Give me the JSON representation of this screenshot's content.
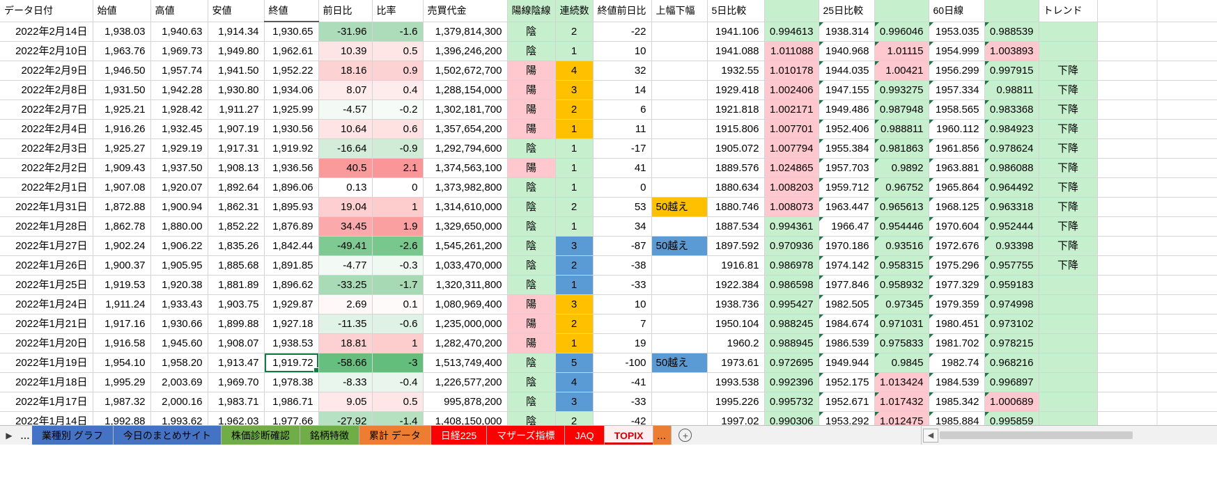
{
  "colors": {
    "green_fill": "#c6efce",
    "pink_fill": "#ffc7ce",
    "orange_fill": "#ffc000",
    "blue_fill": "#5b9bd5",
    "scale_green": "#63be7b",
    "scale_red": "#f8696b",
    "selection": "#107c41"
  },
  "color_scale": {
    "change_range": 60,
    "percent_range": 3
  },
  "selection": {
    "row_index": 17,
    "column": "close"
  },
  "table": {
    "headers": {
      "date": "データ日付",
      "open": "始値",
      "high": "高値",
      "low": "安値",
      "close": "終値",
      "change": "前日比",
      "percent": "比率",
      "volume": "売買代金",
      "candle": "陽線陰線",
      "streak": "連続数",
      "run_change": "終値前日比",
      "band": "上幅下幅",
      "ma5": "5日比較",
      "ma25": "25日比較",
      "ma60": "60日線",
      "trend": "トレンド"
    },
    "rows": [
      {
        "date": "2022年2月14日",
        "open": "1,938.03",
        "high": "1,940.63",
        "low": "1,914.34",
        "close": "1,930.65",
        "chg": "-31.96",
        "pct": "-1.6",
        "vol": "1,379,814,300",
        "candle": "陰",
        "run": "2",
        "run_c": "",
        "cum": "-22",
        "band": "",
        "band_c": "",
        "d5": "1941.106",
        "d5r": "0.994613",
        "d25": "1938.314",
        "d25r": "0.996046",
        "d60": "1953.035",
        "d60r": "0.988539",
        "trend": ""
      },
      {
        "date": "2022年2月10日",
        "open": "1,963.76",
        "high": "1,969.73",
        "low": "1,949.80",
        "close": "1,962.61",
        "chg": "10.39",
        "pct": "0.5",
        "vol": "1,396,246,200",
        "candle": "陰",
        "run": "1",
        "run_c": "",
        "cum": "10",
        "band": "",
        "band_c": "",
        "d5": "1941.088",
        "d5r": "1.011088",
        "d25": "1940.968",
        "d25r": "1.01115",
        "d60": "1954.999",
        "d60r": "1.003893",
        "trend": ""
      },
      {
        "date": "2022年2月9日",
        "open": "1,946.50",
        "high": "1,957.74",
        "low": "1,941.50",
        "close": "1,952.22",
        "chg": "18.16",
        "pct": "0.9",
        "vol": "1,502,672,700",
        "candle": "陽",
        "run": "4",
        "run_c": "orange",
        "cum": "32",
        "band": "",
        "band_c": "",
        "d5": "1932.55",
        "d5r": "1.010178",
        "d25": "1944.035",
        "d25r": "1.00421",
        "d60": "1956.299",
        "d60r": "0.997915",
        "trend": "下降"
      },
      {
        "date": "2022年2月8日",
        "open": "1,931.50",
        "high": "1,942.28",
        "low": "1,930.80",
        "close": "1,934.06",
        "chg": "8.07",
        "pct": "0.4",
        "vol": "1,288,154,000",
        "candle": "陽",
        "run": "3",
        "run_c": "orange",
        "cum": "14",
        "band": "",
        "band_c": "",
        "d5": "1929.418",
        "d5r": "1.002406",
        "d25": "1947.155",
        "d25r": "0.993275",
        "d60": "1957.334",
        "d60r": "0.98811",
        "trend": "下降"
      },
      {
        "date": "2022年2月7日",
        "open": "1,925.21",
        "high": "1,928.42",
        "low": "1,911.27",
        "close": "1,925.99",
        "chg": "-4.57",
        "pct": "-0.2",
        "vol": "1,302,181,700",
        "candle": "陽",
        "run": "2",
        "run_c": "orange",
        "cum": "6",
        "band": "",
        "band_c": "",
        "d5": "1921.818",
        "d5r": "1.002171",
        "d25": "1949.486",
        "d25r": "0.987948",
        "d60": "1958.565",
        "d60r": "0.983368",
        "trend": "下降"
      },
      {
        "date": "2022年2月4日",
        "open": "1,916.26",
        "high": "1,932.45",
        "low": "1,907.19",
        "close": "1,930.56",
        "chg": "10.64",
        "pct": "0.6",
        "vol": "1,357,654,200",
        "candle": "陽",
        "run": "1",
        "run_c": "orange",
        "cum": "11",
        "band": "",
        "band_c": "",
        "d5": "1915.806",
        "d5r": "1.007701",
        "d25": "1952.406",
        "d25r": "0.988811",
        "d60": "1960.112",
        "d60r": "0.984923",
        "trend": "下降"
      },
      {
        "date": "2022年2月3日",
        "open": "1,925.27",
        "high": "1,929.19",
        "low": "1,917.31",
        "close": "1,919.92",
        "chg": "-16.64",
        "pct": "-0.9",
        "vol": "1,292,794,600",
        "candle": "陰",
        "run": "1",
        "run_c": "",
        "cum": "-17",
        "band": "",
        "band_c": "",
        "d5": "1905.072",
        "d5r": "1.007794",
        "d25": "1955.384",
        "d25r": "0.981863",
        "d60": "1961.856",
        "d60r": "0.978624",
        "trend": "下降"
      },
      {
        "date": "2022年2月2日",
        "open": "1,909.43",
        "high": "1,937.50",
        "low": "1,908.13",
        "close": "1,936.56",
        "chg": "40.5",
        "pct": "2.1",
        "vol": "1,374,563,100",
        "candle": "陽",
        "run": "1",
        "run_c": "",
        "cum": "41",
        "band": "",
        "band_c": "",
        "d5": "1889.576",
        "d5r": "1.024865",
        "d25": "1957.703",
        "d25r": "0.9892",
        "d60": "1963.881",
        "d60r": "0.986088",
        "trend": "下降"
      },
      {
        "date": "2022年2月1日",
        "open": "1,907.08",
        "high": "1,920.07",
        "low": "1,892.64",
        "close": "1,896.06",
        "chg": "0.13",
        "pct": "0",
        "vol": "1,373,982,800",
        "candle": "陰",
        "run": "1",
        "run_c": "",
        "cum": "0",
        "band": "",
        "band_c": "",
        "d5": "1880.634",
        "d5r": "1.008203",
        "d25": "1959.712",
        "d25r": "0.96752",
        "d60": "1965.864",
        "d60r": "0.964492",
        "trend": "下降"
      },
      {
        "date": "2022年1月31日",
        "open": "1,872.88",
        "high": "1,900.94",
        "low": "1,862.31",
        "close": "1,895.93",
        "chg": "19.04",
        "pct": "1",
        "vol": "1,314,610,000",
        "candle": "陰",
        "run": "2",
        "run_c": "",
        "cum": "53",
        "band": "50越え",
        "band_c": "orange",
        "d5": "1880.746",
        "d5r": "1.008073",
        "d25": "1963.447",
        "d25r": "0.965613",
        "d60": "1968.125",
        "d60r": "0.963318",
        "trend": "下降"
      },
      {
        "date": "2022年1月28日",
        "open": "1,862.78",
        "high": "1,880.00",
        "low": "1,852.22",
        "close": "1,876.89",
        "chg": "34.45",
        "pct": "1.9",
        "vol": "1,329,650,000",
        "candle": "陰",
        "run": "1",
        "run_c": "",
        "cum": "34",
        "band": "",
        "band_c": "",
        "d5": "1887.534",
        "d5r": "0.994361",
        "d25": "1966.47",
        "d25r": "0.954446",
        "d60": "1970.604",
        "d60r": "0.952444",
        "trend": "下降"
      },
      {
        "date": "2022年1月27日",
        "open": "1,902.24",
        "high": "1,906.22",
        "low": "1,835.26",
        "close": "1,842.44",
        "chg": "-49.41",
        "pct": "-2.6",
        "vol": "1,545,261,200",
        "candle": "陰",
        "run": "3",
        "run_c": "blue",
        "cum": "-87",
        "band": "50越え",
        "band_c": "blue",
        "d5": "1897.592",
        "d5r": "0.970936",
        "d25": "1970.186",
        "d25r": "0.93516",
        "d60": "1972.676",
        "d60r": "0.93398",
        "trend": "下降"
      },
      {
        "date": "2022年1月26日",
        "open": "1,900.37",
        "high": "1,905.95",
        "low": "1,885.68",
        "close": "1,891.85",
        "chg": "-4.77",
        "pct": "-0.3",
        "vol": "1,033,470,000",
        "candle": "陰",
        "run": "2",
        "run_c": "blue",
        "cum": "-38",
        "band": "",
        "band_c": "",
        "d5": "1916.81",
        "d5r": "0.986978",
        "d25": "1974.142",
        "d25r": "0.958315",
        "d60": "1975.296",
        "d60r": "0.957755",
        "trend": "下降"
      },
      {
        "date": "2022年1月25日",
        "open": "1,919.53",
        "high": "1,920.38",
        "low": "1,881.89",
        "close": "1,896.62",
        "chg": "-33.25",
        "pct": "-1.7",
        "vol": "1,320,311,800",
        "candle": "陰",
        "run": "1",
        "run_c": "blue",
        "cum": "-33",
        "band": "",
        "band_c": "",
        "d5": "1922.384",
        "d5r": "0.986598",
        "d25": "1977.846",
        "d25r": "0.958932",
        "d60": "1977.329",
        "d60r": "0.959183",
        "trend": ""
      },
      {
        "date": "2022年1月24日",
        "open": "1,911.24",
        "high": "1,933.43",
        "low": "1,903.75",
        "close": "1,929.87",
        "chg": "2.69",
        "pct": "0.1",
        "vol": "1,080,969,400",
        "candle": "陽",
        "run": "3",
        "run_c": "orange",
        "cum": "10",
        "band": "",
        "band_c": "",
        "d5": "1938.736",
        "d5r": "0.995427",
        "d25": "1982.505",
        "d25r": "0.97345",
        "d60": "1979.359",
        "d60r": "0.974998",
        "trend": ""
      },
      {
        "date": "2022年1月21日",
        "open": "1,917.16",
        "high": "1,930.66",
        "low": "1,899.88",
        "close": "1,927.18",
        "chg": "-11.35",
        "pct": "-0.6",
        "vol": "1,235,000,000",
        "candle": "陽",
        "run": "2",
        "run_c": "orange",
        "cum": "7",
        "band": "",
        "band_c": "",
        "d5": "1950.104",
        "d5r": "0.988245",
        "d25": "1984.674",
        "d25r": "0.971031",
        "d60": "1980.451",
        "d60r": "0.973102",
        "trend": ""
      },
      {
        "date": "2022年1月20日",
        "open": "1,916.58",
        "high": "1,945.60",
        "low": "1,908.07",
        "close": "1,938.53",
        "chg": "18.81",
        "pct": "1",
        "vol": "1,282,470,200",
        "candle": "陽",
        "run": "1",
        "run_c": "orange",
        "cum": "19",
        "band": "",
        "band_c": "",
        "d5": "1960.2",
        "d5r": "0.988945",
        "d25": "1986.539",
        "d25r": "0.975833",
        "d60": "1981.702",
        "d60r": "0.978215",
        "trend": ""
      },
      {
        "date": "2022年1月19日",
        "open": "1,954.10",
        "high": "1,958.20",
        "low": "1,913.47",
        "close": "1,919.72",
        "chg": "-58.66",
        "pct": "-3",
        "vol": "1,513,749,400",
        "candle": "陰",
        "run": "5",
        "run_c": "blue",
        "cum": "-100",
        "band": "50越え",
        "band_c": "blue",
        "d5": "1973.61",
        "d5r": "0.972695",
        "d25": "1949.944",
        "d25r": "0.9845",
        "d60": "1982.74",
        "d60r": "0.968216",
        "trend": ""
      },
      {
        "date": "2022年1月18日",
        "open": "1,995.29",
        "high": "2,003.69",
        "low": "1,969.70",
        "close": "1,978.38",
        "chg": "-8.33",
        "pct": "-0.4",
        "vol": "1,226,577,200",
        "candle": "陰",
        "run": "4",
        "run_c": "blue",
        "cum": "-41",
        "band": "",
        "band_c": "",
        "d5": "1993.538",
        "d5r": "0.992396",
        "d25": "1952.175",
        "d25r": "1.013424",
        "d60": "1984.539",
        "d60r": "0.996897",
        "trend": ""
      },
      {
        "date": "2022年1月17日",
        "open": "1,987.32",
        "high": "2,000.16",
        "low": "1,983.71",
        "close": "1,986.71",
        "chg": "9.05",
        "pct": "0.5",
        "vol": "995,878,200",
        "candle": "陰",
        "run": "3",
        "run_c": "blue",
        "cum": "-33",
        "band": "",
        "band_c": "",
        "d5": "1995.226",
        "d5r": "0.995732",
        "d25": "1952.671",
        "d25r": "1.017432",
        "d60": "1985.342",
        "d60r": "1.000689",
        "trend": ""
      },
      {
        "date": "2022年1月14日",
        "open": "1,992.88",
        "high": "1,993.62",
        "low": "1,962.03",
        "close": "1,977.66",
        "chg": "-27.92",
        "pct": "-1.4",
        "vol": "1,408,150,000",
        "candle": "陰",
        "run": "2",
        "run_c": "",
        "cum": "-42",
        "band": "",
        "band_c": "",
        "d5": "1997.02",
        "d5r": "0.990306",
        "d25": "1953.292",
        "d25r": "1.012475",
        "d60": "1985.884",
        "d60r": "0.995859",
        "trend": ""
      }
    ]
  },
  "tabbar": {
    "nav_arrow": "▶",
    "overflow_ellipsis": "…",
    "add_button": "+",
    "scroll_left_arrow": "◀",
    "tabs": [
      {
        "label": "業種別 グラフ",
        "bg": "#4472c4",
        "fg": "#000000"
      },
      {
        "label": "今日のまとめサイト",
        "bg": "#4472c4",
        "fg": "#000000"
      },
      {
        "label": "株価診断確認",
        "bg": "#70ad47",
        "fg": "#000000"
      },
      {
        "label": "銘柄特徴",
        "bg": "#70ad47",
        "fg": "#000000"
      },
      {
        "label": "累計 データ",
        "bg": "#ed7d31",
        "fg": "#000000"
      },
      {
        "label": "日経225",
        "bg": "#ff0000",
        "fg": "#ffffff"
      },
      {
        "label": "マザーズ指標",
        "bg": "#ff0000",
        "fg": "#ffffff"
      },
      {
        "label": "JAQ",
        "bg": "#ff0000",
        "fg": "#ffffff"
      },
      {
        "label": "TOPIX",
        "bg": "#fdeef0",
        "fg": "#d40000",
        "active": true
      },
      {
        "label": "…",
        "bg": "#ed7d31",
        "fg": "#000000",
        "partial": true
      }
    ]
  }
}
